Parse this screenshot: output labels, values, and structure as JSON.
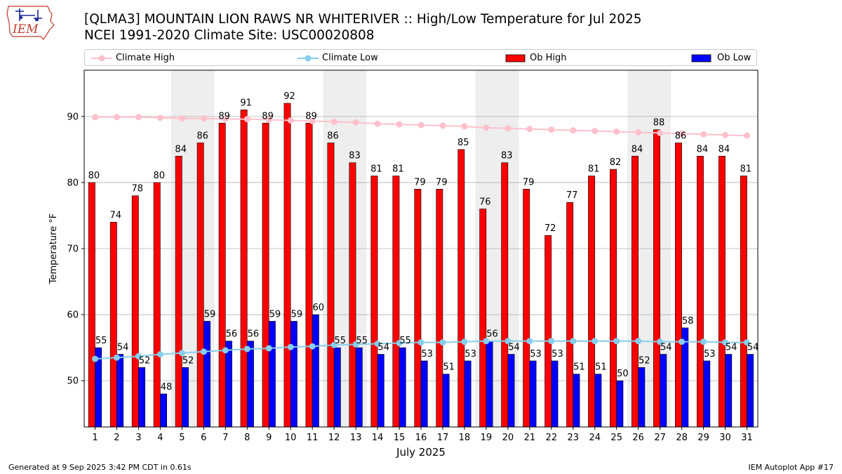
{
  "header": {
    "logo_text": "IEM",
    "title": "[QLMA3] MOUNTAIN LION RAWS NR WHITERIVER :: High/Low Temperature for Jul 2025",
    "subtitle": "NCEI 1991-2020 Climate Site: USC00020808"
  },
  "footer": {
    "generated": "Generated at 9 Sep 2025 3:42 PM CDT in 0.61s",
    "app": "IEM Autoplot App #17"
  },
  "chart_data": {
    "type": "bar",
    "xlabel": "July 2025",
    "ylabel": "Temperature °F",
    "ylim": [
      43,
      97
    ],
    "yticks": [
      50,
      60,
      70,
      80,
      90
    ],
    "grid": "horizontal",
    "legend_position": "top",
    "categories": [
      "1",
      "2",
      "3",
      "4",
      "5",
      "6",
      "7",
      "8",
      "9",
      "10",
      "11",
      "12",
      "13",
      "14",
      "15",
      "16",
      "17",
      "18",
      "19",
      "20",
      "21",
      "22",
      "23",
      "24",
      "25",
      "26",
      "27",
      "28",
      "29",
      "30",
      "31"
    ],
    "shaded_weekend_days": [
      [
        5,
        6
      ],
      [
        12,
        13
      ],
      [
        19,
        20
      ],
      [
        26,
        27
      ]
    ],
    "series": [
      {
        "name": "Climate High",
        "kind": "line",
        "color": "#ffc0cb",
        "values": [
          89.9,
          89.9,
          89.9,
          89.8,
          89.7,
          89.7,
          89.6,
          89.6,
          89.5,
          89.4,
          89.3,
          89.2,
          89.1,
          88.9,
          88.8,
          88.7,
          88.6,
          88.5,
          88.3,
          88.2,
          88.1,
          88.0,
          87.9,
          87.8,
          87.7,
          87.6,
          87.5,
          87.4,
          87.3,
          87.2,
          87.1
        ]
      },
      {
        "name": "Climate Low",
        "kind": "line",
        "color": "#87ceeb",
        "values": [
          53.3,
          53.5,
          53.7,
          54.0,
          54.2,
          54.4,
          54.6,
          54.8,
          54.9,
          55.1,
          55.2,
          55.4,
          55.5,
          55.6,
          55.7,
          55.8,
          55.8,
          55.9,
          56.0,
          56.0,
          56.0,
          56.0,
          56.0,
          56.0,
          56.0,
          56.0,
          55.9,
          55.9,
          55.9,
          55.8,
          55.8
        ]
      },
      {
        "name": "Ob High",
        "kind": "bar",
        "color": "#ff0000",
        "values": [
          80,
          74,
          78,
          80,
          84,
          86,
          89,
          91,
          89,
          92,
          89,
          86,
          83,
          81,
          81,
          79,
          79,
          85,
          76,
          83,
          79,
          72,
          77,
          81,
          82,
          84,
          88,
          86,
          84,
          84,
          81
        ]
      },
      {
        "name": "Ob Low",
        "kind": "bar",
        "color": "#0000ff",
        "values": [
          55,
          54,
          52,
          48,
          52,
          59,
          56,
          56,
          59,
          59,
          60,
          55,
          55,
          54,
          55,
          53,
          51,
          53,
          56,
          54,
          53,
          53,
          51,
          51,
          50,
          52,
          54,
          58,
          53,
          54,
          54
        ]
      }
    ]
  }
}
